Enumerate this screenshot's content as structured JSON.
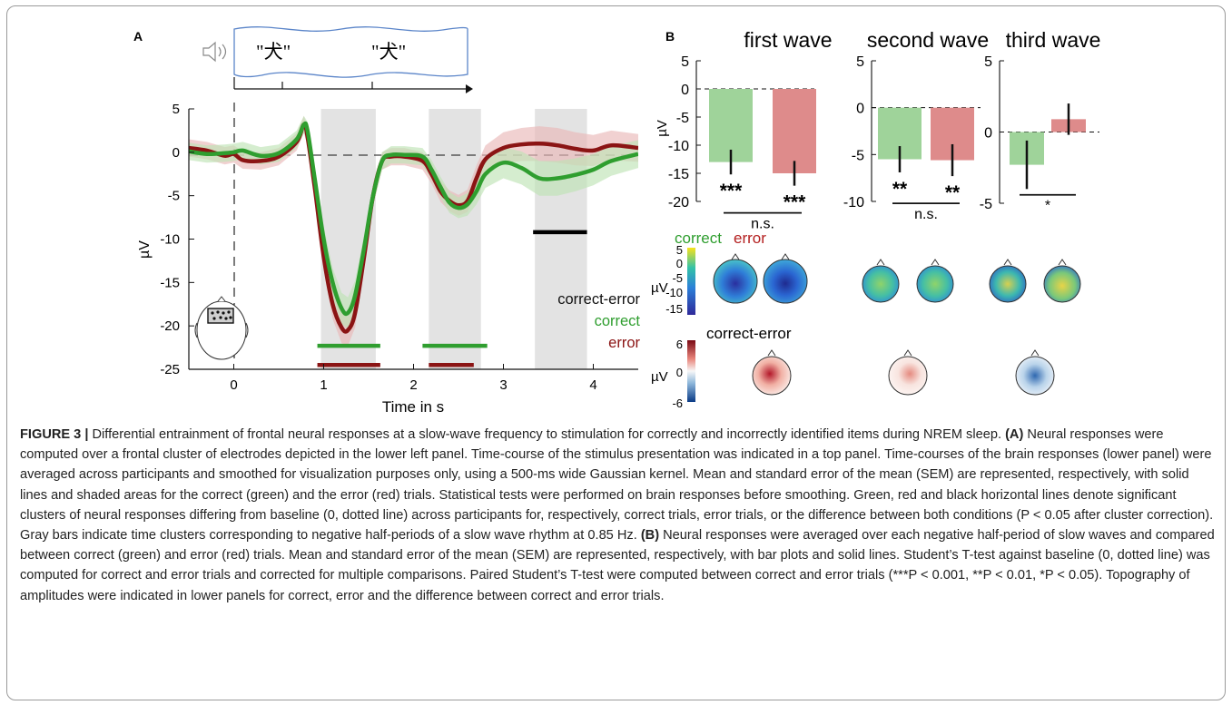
{
  "panel_a": {
    "label": "A",
    "stimulus_words": [
      "\"犬\"",
      "\"犬\""
    ],
    "speaker_icon": "speaker-icon",
    "colors": {
      "correct": "#2f9e2f",
      "error": "#8b1414",
      "diff": "#000000",
      "correct_band": "#bfe3b6",
      "error_band": "#e9b8b8",
      "gray_bar": "#e3e3e3"
    },
    "legend": {
      "diff": "correct-error",
      "correct": "correct",
      "error": "error"
    }
  },
  "panel_b": {
    "label": "B",
    "legend_correct": "correct",
    "legend_error": "error",
    "colorbar1_ticks": [
      "5",
      "0",
      "-5",
      "-10",
      "-15"
    ],
    "colorbar1_unit": "µV",
    "diff_title": "correct-error",
    "colorbar2_ticks": [
      "6",
      "0",
      "-6"
    ],
    "colorbar2_unit": "µV"
  },
  "chart_data": [
    {
      "type": "line",
      "xlabel": "Time in s",
      "ylabel": "µV",
      "xlim": [
        -0.5,
        4.5
      ],
      "ylim": [
        -25,
        5
      ],
      "x_ticks": [
        0,
        1,
        2,
        3,
        4
      ],
      "y_ticks": [
        5,
        0,
        -5,
        -10,
        -15,
        -20,
        -25
      ],
      "gray_bars": [
        [
          0.97,
          1.58
        ],
        [
          2.17,
          2.75
        ],
        [
          3.35,
          3.93
        ]
      ],
      "series": [
        {
          "name": "correct",
          "x": [
            -0.5,
            -0.3,
            -0.1,
            0,
            0.1,
            0.3,
            0.5,
            0.7,
            0.78,
            0.82,
            0.9,
            1.0,
            1.1,
            1.2,
            1.27,
            1.35,
            1.45,
            1.55,
            1.65,
            1.75,
            1.9,
            2.1,
            2.2,
            2.3,
            2.4,
            2.5,
            2.6,
            2.7,
            2.8,
            3.0,
            3.2,
            3.4,
            3.6,
            3.8,
            4.0,
            4.2,
            4.5
          ],
          "y": [
            0.1,
            -0.2,
            -0.1,
            0,
            0.2,
            -0.4,
            -0.1,
            1.5,
            3.2,
            2.5,
            -3,
            -10,
            -15,
            -18,
            -18.5,
            -16.5,
            -11,
            -5,
            -1,
            -0.3,
            -0.3,
            -0.5,
            -2,
            -4,
            -5.8,
            -6.4,
            -6,
            -4.5,
            -2.5,
            -1.2,
            -1.8,
            -3,
            -3,
            -2.6,
            -2,
            -1,
            -0.2
          ],
          "band": [
            1.0,
            1.0,
            1.0,
            1.0,
            1.0,
            1.0,
            1.0,
            1.0,
            1.0,
            1.0,
            1.2,
            1.5,
            1.7,
            1.8,
            1.8,
            1.7,
            1.5,
            1.2,
            1.0,
            1.0,
            1.0,
            1.0,
            1.1,
            1.2,
            1.2,
            1.2,
            1.3,
            1.5,
            1.6,
            1.8,
            1.9,
            2.0,
            2.0,
            1.9,
            1.8,
            1.7,
            1.6
          ]
        },
        {
          "name": "error",
          "x": [
            -0.5,
            -0.3,
            -0.1,
            0,
            0.1,
            0.3,
            0.5,
            0.7,
            0.78,
            0.82,
            0.9,
            1.0,
            1.1,
            1.2,
            1.27,
            1.35,
            1.45,
            1.55,
            1.65,
            1.75,
            1.9,
            2.1,
            2.2,
            2.3,
            2.4,
            2.5,
            2.6,
            2.7,
            2.8,
            3.0,
            3.2,
            3.4,
            3.6,
            3.8,
            4.0,
            4.2,
            4.5
          ],
          "y": [
            0.5,
            0.2,
            -0.4,
            -0.2,
            -0.9,
            -1,
            -0.5,
            1.2,
            3.2,
            1.8,
            -4,
            -12,
            -17.5,
            -20.2,
            -20.5,
            -18.5,
            -12,
            -5,
            -1,
            -0.5,
            -0.5,
            -1,
            -2.5,
            -4.5,
            -5.6,
            -6.1,
            -5.6,
            -3,
            -0.8,
            0.5,
            0.9,
            1,
            0.8,
            0.4,
            0.2,
            0.8,
            0.5
          ],
          "band": [
            1.0,
            1.0,
            1.0,
            1.0,
            1.0,
            1.0,
            1.0,
            1.0,
            1.0,
            1.0,
            1.2,
            1.5,
            1.7,
            1.8,
            1.8,
            1.7,
            1.5,
            1.2,
            1.0,
            1.0,
            1.0,
            1.0,
            1.1,
            1.2,
            1.2,
            1.2,
            1.3,
            1.5,
            1.6,
            1.8,
            1.9,
            2.0,
            2.0,
            1.9,
            1.8,
            1.7,
            1.6
          ]
        }
      ],
      "significance_lines": [
        {
          "name": "correct",
          "from": 0.93,
          "to": 1.63,
          "y": -22.3
        },
        {
          "name": "error",
          "from": 0.93,
          "to": 1.63,
          "y": -24.5
        },
        {
          "name": "correct",
          "from": 2.1,
          "to": 2.82,
          "y": -22.3
        },
        {
          "name": "error",
          "from": 2.17,
          "to": 2.67,
          "y": -24.5
        },
        {
          "name": "correct-error",
          "from": 3.33,
          "to": 3.93,
          "y": -9.2
        }
      ]
    },
    {
      "type": "bar",
      "title": "first wave",
      "ylabel": "µV",
      "ylim": [
        -20,
        5
      ],
      "y_ticks": [
        5,
        0,
        -5,
        -10,
        -15,
        -20
      ],
      "categories": [
        "correct",
        "error"
      ],
      "values": [
        -13,
        -15
      ],
      "errors": [
        2.2,
        2.2
      ],
      "stars": [
        "***",
        "***"
      ],
      "comparison": "n.s."
    },
    {
      "type": "bar",
      "title": "second wave",
      "ylim": [
        -10,
        5
      ],
      "y_ticks": [
        5,
        0,
        -5,
        -10
      ],
      "categories": [
        "correct",
        "error"
      ],
      "values": [
        -5.5,
        -5.6
      ],
      "errors": [
        1.4,
        1.7
      ],
      "stars": [
        "**",
        "**"
      ],
      "comparison": "n.s."
    },
    {
      "type": "bar",
      "title": "third wave",
      "ylim": [
        -5,
        5
      ],
      "y_ticks": [
        5,
        0,
        -5
      ],
      "categories": [
        "correct",
        "error"
      ],
      "values": [
        -2.3,
        0.9
      ],
      "errors": [
        1.7,
        1.1
      ],
      "stars": [],
      "comparison": "*"
    }
  ],
  "caption": {
    "label": "FIGURE 3 |",
    "text1": " Differential entrainment of frontal neural responses at a slow-wave frequency to stimulation for correctly and incorrectly identified items during NREM sleep. ",
    "a_tag": "(A)",
    "text2": " Neural responses were computed over a frontal cluster of electrodes depicted in the lower left panel. Time-course of the stimulus presentation was indicated in a top panel. Time-courses of the brain responses (lower panel) were averaged across participants and smoothed for visualization purposes only, using a 500-ms wide Gaussian kernel. Mean and standard error of the mean (SEM) are represented, respectively, with solid lines and shaded areas for the correct (green) and the error (red) trials. Statistical tests were performed on brain responses before smoothing. Green, red and black horizontal lines denote significant clusters of neural responses differing from baseline (0, dotted line) across participants for, respectively, correct trials, error trials, or the difference between both conditions (P < 0.05 after cluster correction). Gray bars indicate time clusters corresponding to negative half-periods of a slow wave rhythm at 0.85 Hz. ",
    "b_tag": "(B)",
    "text3": " Neural responses were averaged over each negative half-period of slow waves and compared between correct (green) and error (red) trials. Mean and standard error of the mean (SEM) are represented, respectively, with bar plots and solid lines. Student’s T-test against baseline (0, dotted line) was computed for correct and error trials and corrected for multiple comparisons. Paired Student’s T-test were computed between correct and error trials (***P < 0.001, **P < 0.01, *P < 0.05). Topography of amplitudes were indicated in lower panels for correct, error and the difference between correct and error trials."
  }
}
